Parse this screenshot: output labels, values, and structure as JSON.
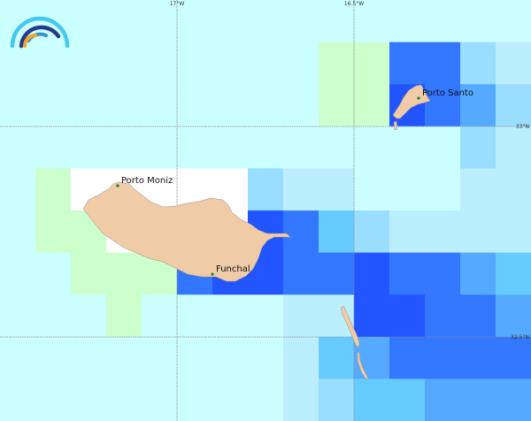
{
  "palette": {
    "C": "#ccffff",
    "G": "#ccffcc",
    "W": "#ffffff",
    "L": "#bbeeff",
    "M": "#99ddff",
    "S": "#66ccff",
    "A": "#55aaff",
    "B": "#3377ff",
    "D": "#2255ff"
  },
  "grid": [
    "CCCCCCCCCCCCCCC",
    "CCCCCCCCCGGBBML",
    "CCCCCCCCCGGDBAM",
    "CCCCCCCCCCCCCML",
    "CGWWWWWMLLCCCLL",
    "CGGWWWWDBSMLLLL",
    "CCGGGBDDBBDBBAS",
    "CCCGCCCCLLDDBBA",
    "CCCCCCCCLSABBBB",
    "CCCCCCCCLMSSAAA"
  ],
  "land_color": "#efcba8",
  "graticule": {
    "lon_labels": [
      "17°W",
      "16.5°W"
    ],
    "lat_labels": [
      "33°N",
      "32.5°N"
    ]
  },
  "places": [
    {
      "name": "Porto Moniz"
    },
    {
      "name": "Porto Santo"
    },
    {
      "name": "Funchal"
    }
  ],
  "logo": {
    "colors": [
      "#44c8f0",
      "#223a8a",
      "#3a8fc8",
      "#f5a623"
    ]
  }
}
